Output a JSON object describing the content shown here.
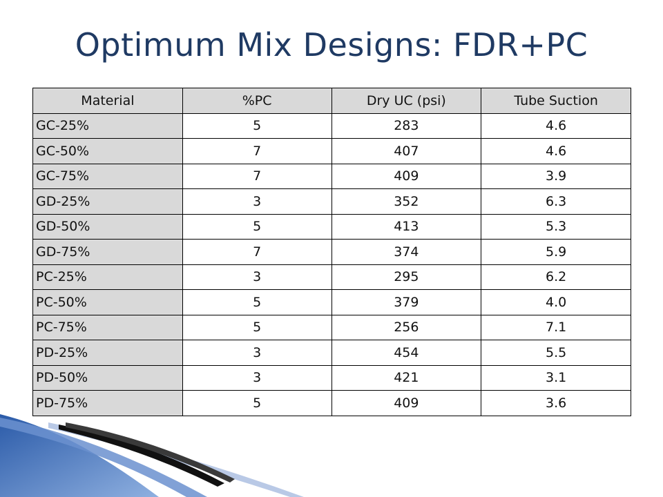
{
  "title": "Optimum Mix Designs: FDR+PC",
  "table": {
    "headers": [
      "Material",
      "%PC",
      "Dry UC (psi)",
      "Tube Suction"
    ],
    "rows": [
      [
        "GC-25%",
        "5",
        "283",
        "4.6"
      ],
      [
        "GC-50%",
        "7",
        "407",
        "4.6"
      ],
      [
        "GC-75%",
        "7",
        "409",
        "3.9"
      ],
      [
        "GD-25%",
        "3",
        "352",
        "6.3"
      ],
      [
        "GD-50%",
        "5",
        "413",
        "5.3"
      ],
      [
        "GD-75%",
        "7",
        "374",
        "5.9"
      ],
      [
        "PC-25%",
        "3",
        "295",
        "6.2"
      ],
      [
        "PC-50%",
        "5",
        "379",
        "4.0"
      ],
      [
        "PC-75%",
        "5",
        "256",
        "7.1"
      ],
      [
        "PD-25%",
        "3",
        "454",
        "5.5"
      ],
      [
        "PD-50%",
        "3",
        "421",
        "3.1"
      ],
      [
        "PD-75%",
        "5",
        "409",
        "3.6"
      ]
    ]
  },
  "colors": {
    "title": "#1f3a63",
    "header_fill": "#d9d9d9",
    "swoosh_blue": "#3f6fb8"
  }
}
